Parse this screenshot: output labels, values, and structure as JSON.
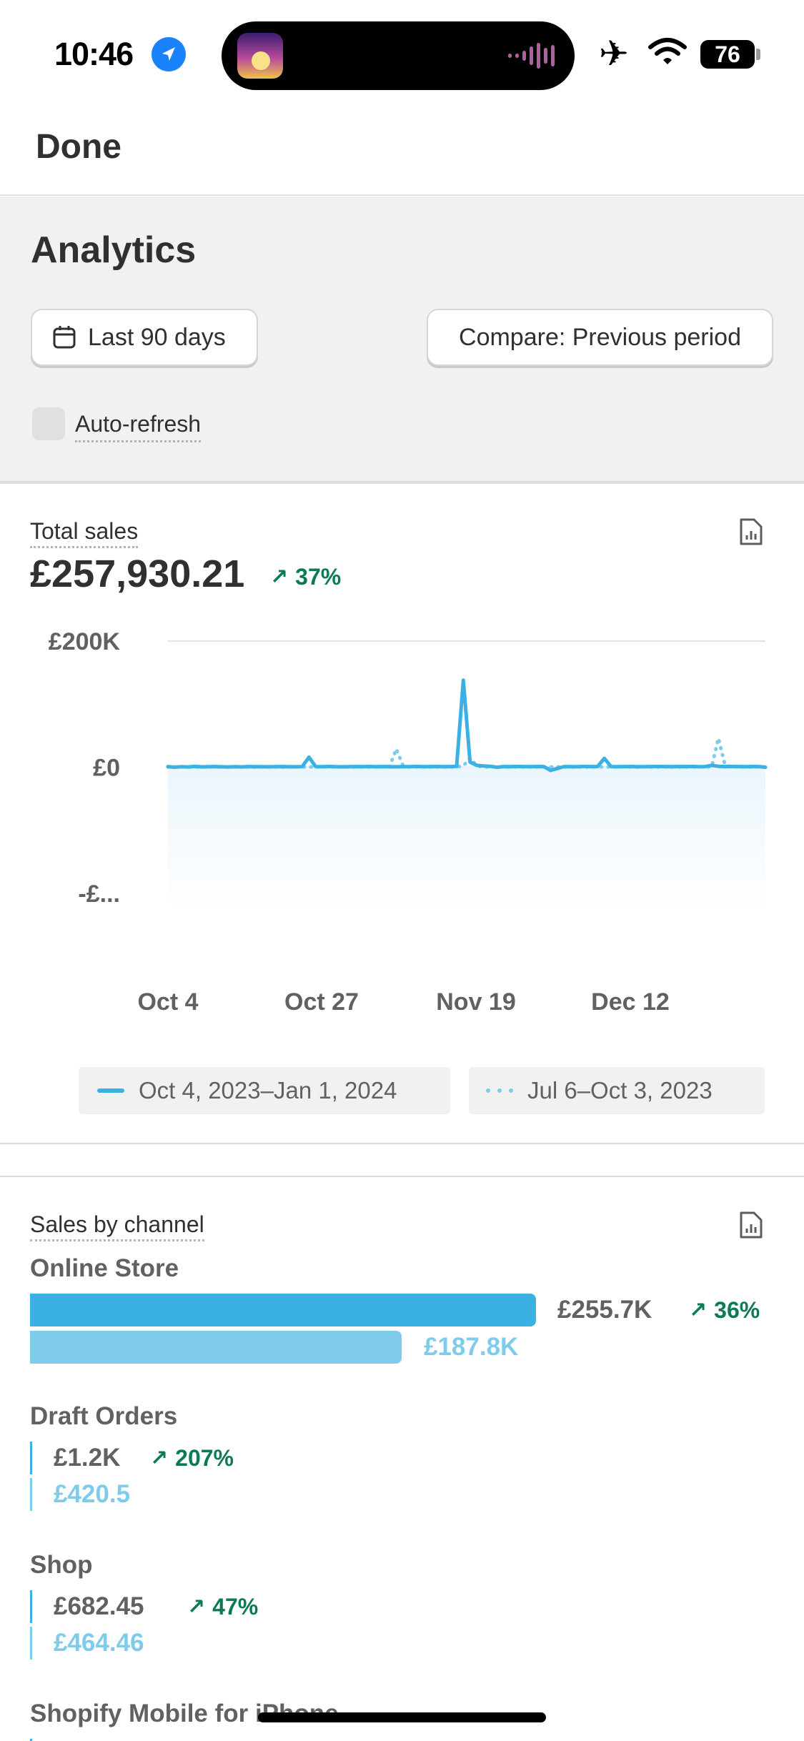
{
  "status_bar": {
    "time": "10:46",
    "battery": "76",
    "icons": [
      "location-arrow-icon",
      "airplane-icon",
      "wifi-icon",
      "battery-icon"
    ]
  },
  "nav": {
    "done_label": "Done"
  },
  "header": {
    "title": "Analytics",
    "date_range_label": "Last 90 days",
    "compare_label": "Compare: Previous period",
    "auto_refresh_label": "Auto-refresh",
    "auto_refresh_checked": false
  },
  "total_sales": {
    "label": "Total sales",
    "value": "£257,930.21",
    "delta": "37%",
    "delta_color": "#0c7a52",
    "legend_current": "Oct 4, 2023–Jan 1, 2024",
    "legend_previous": "Jul 6–Oct 3, 2023"
  },
  "chart_data": {
    "type": "line",
    "title": "Total sales",
    "xlabel": "",
    "ylabel": "",
    "x_ticks": [
      "Oct 4",
      "Oct 27",
      "Nov 19",
      "Dec 12"
    ],
    "y_ticks": [
      "£200K",
      "£0",
      "-£..."
    ],
    "ylim": [
      -200000,
      200000
    ],
    "grid": true,
    "legend_placement": "bottom",
    "colors": {
      "current": "#3bb0e3",
      "previous": "#7fcbec"
    },
    "series": [
      {
        "name": "Oct 4, 2023–Jan 1, 2024",
        "style": "solid",
        "values": [
          1000,
          0,
          800,
          500,
          1200,
          600,
          900,
          1000,
          700,
          500,
          800,
          600,
          1000,
          900,
          800,
          700,
          900,
          1000,
          800,
          700,
          1000,
          16000,
          1000,
          900,
          1200,
          800,
          700,
          900,
          1000,
          800,
          1100,
          900,
          1000,
          800,
          700,
          1000,
          900,
          1200,
          800,
          1000,
          1100,
          900,
          1000,
          1400,
          138000,
          8000,
          3000,
          2000,
          1500,
          0,
          1000,
          800,
          1200,
          1000,
          900,
          1100,
          1000,
          -5000,
          -2000,
          1000,
          900,
          800,
          1200,
          1000,
          1100,
          14000,
          1000,
          900,
          1000,
          1100,
          800,
          900,
          1000,
          1200,
          1000,
          900,
          1100,
          1000,
          1200,
          900,
          1000,
          3000,
          1500,
          1000,
          1200,
          1000,
          900,
          1100,
          1000,
          0
        ]
      },
      {
        "name": "Jul 6–Oct 3, 2023",
        "style": "dotted",
        "values": [
          500,
          400,
          600,
          500,
          400,
          500,
          600,
          400,
          500,
          600,
          500,
          400,
          600,
          500,
          400,
          500,
          600,
          400,
          500,
          600,
          500,
          400,
          600,
          500,
          400,
          500,
          600,
          400,
          500,
          600,
          500,
          400,
          600,
          500,
          29000,
          3000,
          500,
          600,
          500,
          400,
          600,
          500,
          400,
          500,
          2000,
          15000,
          2000,
          500,
          600,
          400,
          500,
          600,
          500,
          400,
          600,
          500,
          400,
          500,
          600,
          400,
          500,
          600,
          500,
          400,
          600,
          500,
          400,
          500,
          600,
          400,
          500,
          600,
          500,
          400,
          600,
          500,
          400,
          500,
          600,
          400,
          500,
          600,
          46000,
          3000,
          500,
          600,
          500,
          400,
          600,
          500
        ]
      }
    ]
  },
  "sales_by_channel": {
    "label": "Sales by channel",
    "channels": [
      {
        "name": "Online Store",
        "current": "£255.7K",
        "previous": "£187.8K",
        "delta": "36%",
        "current_fraction": 1.0,
        "previous_fraction": 0.734
      },
      {
        "name": "Draft Orders",
        "current": "£1.2K",
        "previous": "£420.5",
        "delta": "207%"
      },
      {
        "name": "Shop",
        "current": "£682.45",
        "previous": "£464.46",
        "delta": "47%"
      },
      {
        "name": "Shopify Mobile for iPhone"
      }
    ],
    "colors": {
      "current": "#3bb0e3",
      "previous": "#7fcbec",
      "current_text": "#616161",
      "previous_text": "#7fcbec"
    }
  }
}
